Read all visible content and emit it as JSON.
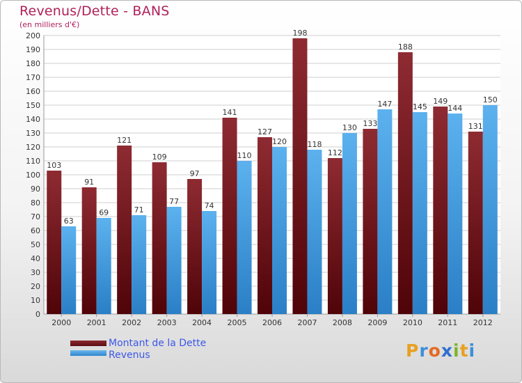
{
  "title": "Revenus/Dette - BANS",
  "subtitle": "(en milliers d'€)",
  "logo": {
    "text": "Proxiti",
    "letters": [
      {
        "ch": "P",
        "color": "#e8a020"
      },
      {
        "ch": "r",
        "color": "#3d8ed8"
      },
      {
        "ch": "o",
        "color": "#e36a22"
      },
      {
        "ch": "x",
        "color": "#2f6fd0"
      },
      {
        "ch": "i",
        "color": "#7cb52a"
      },
      {
        "ch": "t",
        "color": "#e8a020"
      },
      {
        "ch": "i",
        "color": "#3d8ed8"
      }
    ]
  },
  "colors": {
    "dette": "#7a1c22",
    "revenus": "#4a9fe0",
    "axis_text": "#333333",
    "grid": "#cfcfcf"
  },
  "chart_data": {
    "type": "bar",
    "title": "Revenus/Dette - BANS",
    "subtitle": "(en milliers d'€)",
    "categories": [
      "2000",
      "2001",
      "2002",
      "2003",
      "2004",
      "2005",
      "2006",
      "2007",
      "2008",
      "2009",
      "2010",
      "2011",
      "2012"
    ],
    "series": [
      {
        "name": "Montant de la Dette",
        "values": [
          103,
          91,
          121,
          109,
          97,
          141,
          127,
          198,
          112,
          133,
          188,
          149,
          131
        ]
      },
      {
        "name": "Revenus",
        "values": [
          63,
          69,
          71,
          77,
          74,
          110,
          120,
          118,
          130,
          147,
          145,
          144,
          150
        ]
      }
    ],
    "ylim": [
      0,
      200
    ],
    "yticks": [
      0,
      10,
      20,
      30,
      40,
      50,
      60,
      70,
      80,
      90,
      100,
      110,
      120,
      130,
      140,
      150,
      160,
      170,
      180,
      190,
      200
    ],
    "grid": true,
    "legend_position": "bottom-left"
  }
}
